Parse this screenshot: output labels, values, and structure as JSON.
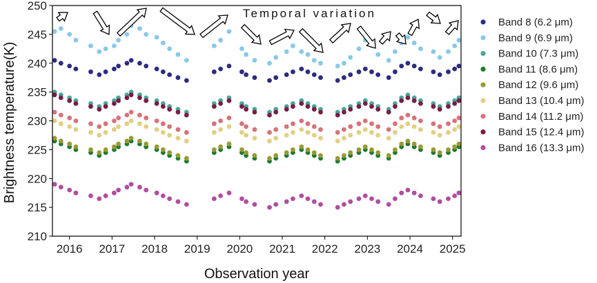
{
  "chart_data": {
    "type": "scatter",
    "title": "",
    "xlabel": "Observation year",
    "ylabel": "Brightness temperature(K)",
    "xlim": [
      2015.6,
      2025.2
    ],
    "ylim": [
      210,
      250
    ],
    "x_ticks": [
      2016,
      2017,
      2018,
      2019,
      2020,
      2021,
      2022,
      2023,
      2024,
      2025
    ],
    "y_ticks": [
      210,
      215,
      220,
      225,
      230,
      235,
      240,
      245,
      250
    ],
    "grid": false,
    "legend_position": "right",
    "annotation": "Temporal variation",
    "observation_epochs": [
      2015.65,
      2015.8,
      2016.0,
      2016.15,
      2016.5,
      2016.7,
      2016.85,
      2017.05,
      2017.15,
      2017.35,
      2017.45,
      2017.65,
      2017.8,
      2018.05,
      2018.2,
      2018.35,
      2018.55,
      2018.75,
      2019.4,
      2019.55,
      2019.75,
      2020.05,
      2020.15,
      2020.35,
      2020.7,
      2020.85,
      2021.1,
      2021.25,
      2021.45,
      2021.6,
      2021.75,
      2021.9,
      2022.3,
      2022.45,
      2022.6,
      2022.8,
      2022.95,
      2023.1,
      2023.25,
      2023.5,
      2023.65,
      2023.8,
      2023.95,
      2024.1,
      2024.25,
      2024.55,
      2024.7,
      2024.9,
      2025.05,
      2025.15
    ],
    "series": [
      {
        "name": "Band 8 (6.2 μm)",
        "color": "#2e2c7f",
        "y": [
          240.5,
          240.0,
          239.5,
          239.0,
          238.5,
          238.0,
          238.5,
          239.0,
          239.5,
          240.0,
          240.5,
          240.0,
          239.5,
          239.0,
          238.5,
          238.0,
          237.5,
          237.0,
          238.5,
          239.0,
          239.5,
          238.5,
          238.0,
          237.5,
          237.0,
          237.5,
          238.0,
          238.5,
          239.0,
          238.5,
          238.0,
          237.5,
          237.0,
          237.5,
          238.0,
          238.5,
          239.0,
          238.5,
          238.0,
          237.5,
          238.5,
          239.5,
          240.0,
          239.5,
          239.0,
          238.5,
          238.0,
          238.5,
          239.0,
          239.5
        ]
      },
      {
        "name": "Band 9 (6.9 μm)",
        "color": "#89c8ea",
        "y": [
          245.5,
          246.0,
          245.0,
          244.0,
          243.0,
          242.0,
          242.5,
          243.0,
          244.0,
          245.0,
          246.5,
          246.0,
          245.0,
          244.5,
          243.5,
          242.5,
          241.5,
          240.5,
          243.0,
          244.0,
          245.5,
          242.5,
          241.5,
          240.5,
          240.0,
          241.0,
          242.0,
          243.0,
          242.0,
          241.5,
          240.5,
          240.0,
          239.5,
          240.0,
          241.0,
          242.5,
          244.0,
          243.0,
          241.5,
          240.5,
          242.0,
          243.5,
          244.5,
          243.5,
          242.5,
          242.0,
          241.0,
          242.0,
          243.0,
          244.0
        ]
      },
      {
        "name": "Band 10 (7.3 μm)",
        "color": "#4aa898",
        "y": [
          235.0,
          234.5,
          234.0,
          233.5,
          233.0,
          232.5,
          233.0,
          233.5,
          234.0,
          234.5,
          235.0,
          234.5,
          234.0,
          233.5,
          233.0,
          232.5,
          232.0,
          231.5,
          233.0,
          233.5,
          234.0,
          233.0,
          232.5,
          232.0,
          231.5,
          232.0,
          232.5,
          233.0,
          233.5,
          233.0,
          232.5,
          232.0,
          231.5,
          232.0,
          232.5,
          233.0,
          233.5,
          233.0,
          232.5,
          232.0,
          233.0,
          234.0,
          234.5,
          234.0,
          233.5,
          233.0,
          232.5,
          233.0,
          233.5,
          234.0
        ]
      },
      {
        "name": "Band 11 (8.6 μm)",
        "color": "#1f7a32",
        "y": [
          226.5,
          226.0,
          225.5,
          225.0,
          224.5,
          224.0,
          224.5,
          225.0,
          225.5,
          226.0,
          226.5,
          226.0,
          225.5,
          225.0,
          224.5,
          224.0,
          223.5,
          223.0,
          224.5,
          225.0,
          225.5,
          224.5,
          224.0,
          223.5,
          223.0,
          223.5,
          224.0,
          224.5,
          225.0,
          224.5,
          224.0,
          223.5,
          223.0,
          223.5,
          224.0,
          224.5,
          225.0,
          224.5,
          224.0,
          223.5,
          224.5,
          225.5,
          226.0,
          225.5,
          225.0,
          224.5,
          224.0,
          224.5,
          225.0,
          225.5
        ]
      },
      {
        "name": "Band 12 (9.6 μm)",
        "color": "#9a9a36",
        "y": [
          227.0,
          226.5,
          226.0,
          225.5,
          225.0,
          224.5,
          225.0,
          225.5,
          226.0,
          226.5,
          227.0,
          226.5,
          226.0,
          225.5,
          225.0,
          224.5,
          224.0,
          223.5,
          225.0,
          225.5,
          226.0,
          225.0,
          224.5,
          224.0,
          223.5,
          224.0,
          224.5,
          225.0,
          225.5,
          225.0,
          224.5,
          224.0,
          223.5,
          224.0,
          224.5,
          225.0,
          225.5,
          225.0,
          224.5,
          224.0,
          225.0,
          226.0,
          226.5,
          226.0,
          225.5,
          225.0,
          224.5,
          225.0,
          225.5,
          226.0
        ]
      },
      {
        "name": "Band 13 (10.4 μm)",
        "color": "#e2cf82",
        "y": [
          230.0,
          229.5,
          229.0,
          228.5,
          228.0,
          227.5,
          228.0,
          228.5,
          229.0,
          229.5,
          230.0,
          229.5,
          229.0,
          228.5,
          228.0,
          227.5,
          227.0,
          226.5,
          228.0,
          228.5,
          229.0,
          228.0,
          227.5,
          227.0,
          226.5,
          227.0,
          227.5,
          228.0,
          228.5,
          228.0,
          227.5,
          227.0,
          226.5,
          227.0,
          227.5,
          228.0,
          228.5,
          228.0,
          227.5,
          227.0,
          228.0,
          229.0,
          229.5,
          229.0,
          228.5,
          228.0,
          227.5,
          228.0,
          228.5,
          229.0
        ]
      },
      {
        "name": "Band 14 (11.2 μm)",
        "color": "#d7737a",
        "y": [
          231.5,
          231.0,
          230.5,
          230.0,
          229.5,
          229.0,
          229.5,
          230.0,
          230.5,
          231.0,
          231.5,
          231.0,
          230.5,
          230.0,
          229.5,
          229.0,
          228.5,
          228.0,
          229.5,
          230.0,
          230.5,
          229.5,
          229.0,
          228.5,
          228.0,
          228.5,
          229.0,
          229.5,
          230.0,
          229.5,
          229.0,
          228.5,
          228.0,
          228.5,
          229.0,
          229.5,
          230.0,
          229.5,
          229.0,
          228.5,
          229.5,
          230.5,
          231.0,
          230.5,
          230.0,
          229.5,
          229.0,
          229.5,
          230.0,
          230.5
        ]
      },
      {
        "name": "Band 15 (12.4 μm)",
        "color": "#7a1c48",
        "y": [
          234.5,
          234.0,
          233.5,
          233.0,
          232.5,
          232.0,
          232.5,
          233.0,
          233.5,
          234.0,
          234.5,
          234.0,
          233.5,
          233.0,
          232.5,
          232.0,
          231.5,
          231.0,
          232.5,
          233.0,
          233.5,
          232.5,
          232.0,
          231.5,
          231.0,
          231.5,
          232.0,
          232.5,
          233.0,
          232.5,
          232.0,
          231.5,
          231.0,
          231.5,
          232.0,
          232.5,
          233.0,
          232.5,
          232.0,
          231.5,
          232.5,
          233.5,
          234.0,
          233.5,
          233.0,
          232.5,
          232.0,
          232.5,
          233.0,
          233.5
        ]
      },
      {
        "name": "Band 16 (13.3 μm)",
        "color": "#b04ea0",
        "y": [
          219.0,
          218.5,
          218.0,
          217.5,
          217.0,
          216.5,
          217.0,
          217.5,
          218.0,
          218.5,
          219.0,
          218.5,
          218.0,
          217.5,
          217.0,
          216.5,
          216.0,
          215.5,
          216.5,
          217.0,
          217.5,
          216.5,
          216.0,
          215.5,
          215.0,
          215.5,
          216.0,
          216.5,
          217.0,
          216.5,
          216.0,
          215.5,
          215.0,
          215.5,
          216.0,
          216.5,
          217.0,
          216.5,
          216.0,
          215.5,
          216.5,
          217.5,
          218.0,
          217.5,
          217.0,
          216.5,
          216.0,
          216.5,
          217.0,
          217.5
        ]
      }
    ]
  }
}
